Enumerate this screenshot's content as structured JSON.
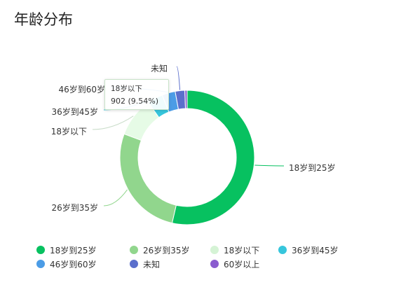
{
  "title": "年龄分布",
  "tooltip": {
    "label": "18岁以下",
    "value": "902 (9.54%)"
  },
  "chart_data": {
    "type": "pie",
    "donut": true,
    "slices": [
      {
        "label": "18岁到25岁",
        "percent": 53.6,
        "color": "#07c160"
      },
      {
        "label": "26岁到35岁",
        "percent": 27.1,
        "color": "#91d68d"
      },
      {
        "label": "18岁以下",
        "value": 902,
        "percent": 9.54,
        "color": "#e6fbe6"
      },
      {
        "label": "36岁到45岁",
        "percent": 3.7,
        "color": "#36c6dc"
      },
      {
        "label": "46岁到60岁",
        "percent": 3.2,
        "color": "#4b9ce6"
      },
      {
        "label": "未知",
        "percent": 2.3,
        "color": "#5b6fcc"
      },
      {
        "label": "60岁以上",
        "percent": 0.56,
        "color": "#8a5ccf"
      }
    ],
    "outer_labels": [
      "18岁到25岁",
      "26岁到35岁",
      "18岁以下",
      "36岁到45岁",
      "46岁到60岁",
      "未知"
    ],
    "legend": [
      {
        "label": "18岁到25岁",
        "color": "#07c160"
      },
      {
        "label": "26岁到35岁",
        "color": "#91d68d"
      },
      {
        "label": "18岁以下",
        "color": "#d5f3d5"
      },
      {
        "label": "36岁到45岁",
        "color": "#36c6dc"
      },
      {
        "label": "46岁到60岁",
        "color": "#4b9ce6"
      },
      {
        "label": "未知",
        "color": "#5b6fcc"
      },
      {
        "label": "60岁以上",
        "color": "#8a5ccf"
      }
    ],
    "legend_position": "bottom"
  }
}
